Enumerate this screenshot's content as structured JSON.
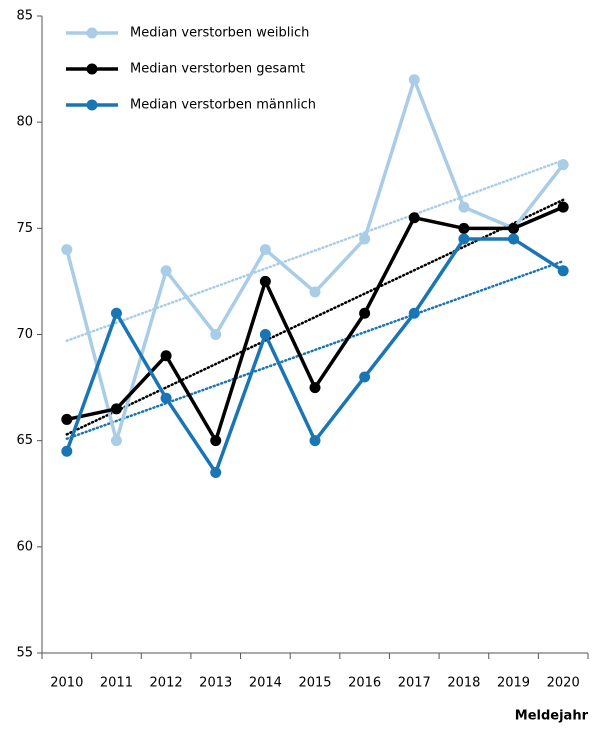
{
  "chart_data": {
    "type": "line",
    "x_label": "Meldejahr",
    "categories": [
      "2010",
      "2011",
      "2012",
      "2013",
      "2014",
      "2015",
      "2016",
      "2017",
      "2018",
      "2019",
      "2020"
    ],
    "series": [
      {
        "name": "Median verstorben weiblich",
        "color": "#a9cde6",
        "values": [
          74,
          65,
          73,
          70,
          74,
          72,
          74.5,
          82,
          76,
          75,
          78
        ]
      },
      {
        "name": "Median verstorben gesamt",
        "color": "#000000",
        "values": [
          66,
          66.5,
          69,
          65,
          72.5,
          67.5,
          71,
          75.5,
          75,
          75,
          76
        ]
      },
      {
        "name": "Median verstorben männlich",
        "color": "#1a75b5",
        "values": [
          64.5,
          71,
          67,
          63.5,
          70,
          65,
          68,
          71,
          74.5,
          74.5,
          73
        ]
      }
    ],
    "ylim": [
      55,
      85
    ],
    "yticks": [
      55,
      60,
      65,
      70,
      75,
      80,
      85
    ],
    "trendline": true,
    "legend": "top-left",
    "grid": false
  }
}
